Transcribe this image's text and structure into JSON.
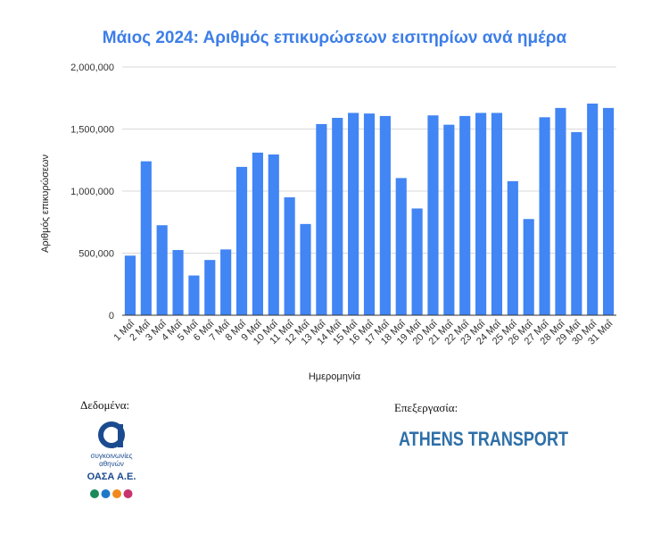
{
  "chart_data": {
    "type": "bar",
    "title": "Μάιος 2024: Αριθμός επικυρώσεων εισιτηρίων ανά ημέρα",
    "xlabel": "Ημερομηνία",
    "ylabel": "Αριθμός επικυρώσεων",
    "ylim": [
      0,
      2000000
    ],
    "yticks": [
      "0",
      "500,000",
      "1,000,000",
      "1,500,000",
      "2,000,000"
    ],
    "ytick_values": [
      0,
      500000,
      1000000,
      1500000,
      2000000
    ],
    "grid": true,
    "legend": "none",
    "bar_color": "#4285f4",
    "categories": [
      "1 Μαΐ",
      "2 Μαΐ",
      "3 Μαΐ",
      "4 Μαΐ",
      "5 Μαΐ",
      "6 Μαΐ",
      "7 Μαΐ",
      "8 Μαΐ",
      "9 Μαΐ",
      "10 Μαΐ",
      "11 Μαΐ",
      "12 Μαΐ",
      "13 Μαΐ",
      "14 Μαΐ",
      "15 Μαΐ",
      "16 Μαΐ",
      "17 Μαΐ",
      "18 Μαΐ",
      "19 Μαΐ",
      "20 Μαΐ",
      "21 Μαΐ",
      "22 Μαΐ",
      "23 Μαΐ",
      "24 Μαΐ",
      "25 Μαΐ",
      "26 Μαΐ",
      "27 Μαΐ",
      "28 Μαΐ",
      "29 Μαΐ",
      "30 Μαΐ",
      "31 Μαΐ"
    ],
    "values": [
      480000,
      1240000,
      725000,
      525000,
      320000,
      445000,
      530000,
      1195000,
      1310000,
      1295000,
      950000,
      735000,
      1540000,
      1590000,
      1630000,
      1625000,
      1605000,
      1105000,
      860000,
      1610000,
      1535000,
      1605000,
      1630000,
      1630000,
      1080000,
      775000,
      1595000,
      1670000,
      1475000,
      1705000,
      1670000
    ]
  },
  "footer": {
    "source_label": "Δεδομένα:",
    "credit_label": "Επεξεργασία:",
    "oasa_logo": {
      "line1": "συγκοινωνίες",
      "line2": "αθηνών",
      "line3": "ΟΑΣΑ Α.Ε.",
      "color": "#1b4a8f",
      "dot_colors": [
        "#1b8a5a",
        "#1e78c8",
        "#f08a1c",
        "#c8326e"
      ]
    },
    "athens_logo": {
      "text": "ATHENS TRANSPORT",
      "color": "#2d6fa8"
    }
  }
}
